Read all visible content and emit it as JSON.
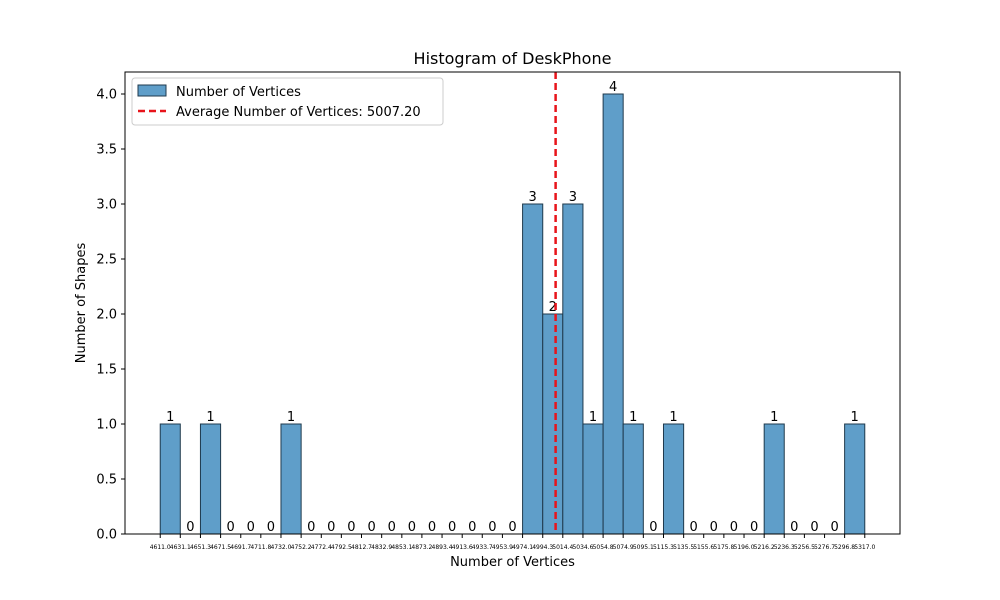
{
  "chart_data": {
    "type": "bar",
    "title": "Histogram of DeskPhone",
    "xlabel": "Number of Vertices",
    "ylabel": "Number of Shapes",
    "ylim": [
      0,
      4.2
    ],
    "yticks": [
      "0.0",
      "0.5",
      "1.0",
      "1.5",
      "2.0",
      "2.5",
      "3.0",
      "3.5",
      "4.0"
    ],
    "bin_edges": [
      "4611.0",
      "4631.1",
      "4651.3",
      "4671.5",
      "4691.7",
      "4711.8",
      "4732.0",
      "4752.2",
      "4772.4",
      "4792.5",
      "4812.7",
      "4832.9",
      "4853.1",
      "4873.2",
      "4893.4",
      "4913.6",
      "4933.7",
      "4953.9",
      "4974.1",
      "4994.3",
      "5014.4",
      "5034.6",
      "5054.8",
      "5074.9",
      "5095.1",
      "5115.3",
      "5135.5",
      "5155.6",
      "5175.8",
      "5196.0",
      "5216.2",
      "5236.3",
      "5256.5",
      "5276.7",
      "5296.8",
      "5317.0"
    ],
    "values": [
      1,
      0,
      1,
      0,
      0,
      0,
      1,
      0,
      0,
      0,
      0,
      0,
      0,
      0,
      0,
      0,
      0,
      0,
      3,
      2,
      3,
      1,
      4,
      1,
      0,
      1,
      0,
      0,
      0,
      0,
      1,
      0,
      0,
      0,
      1
    ],
    "series": [
      {
        "name": "Number of Vertices",
        "color": "#5f9ec9"
      }
    ],
    "average": {
      "value": 5007.2,
      "label": "Average Number of Vertices: 5007.20",
      "color": "#e8141b"
    },
    "legend": "top-left",
    "grid": false
  }
}
